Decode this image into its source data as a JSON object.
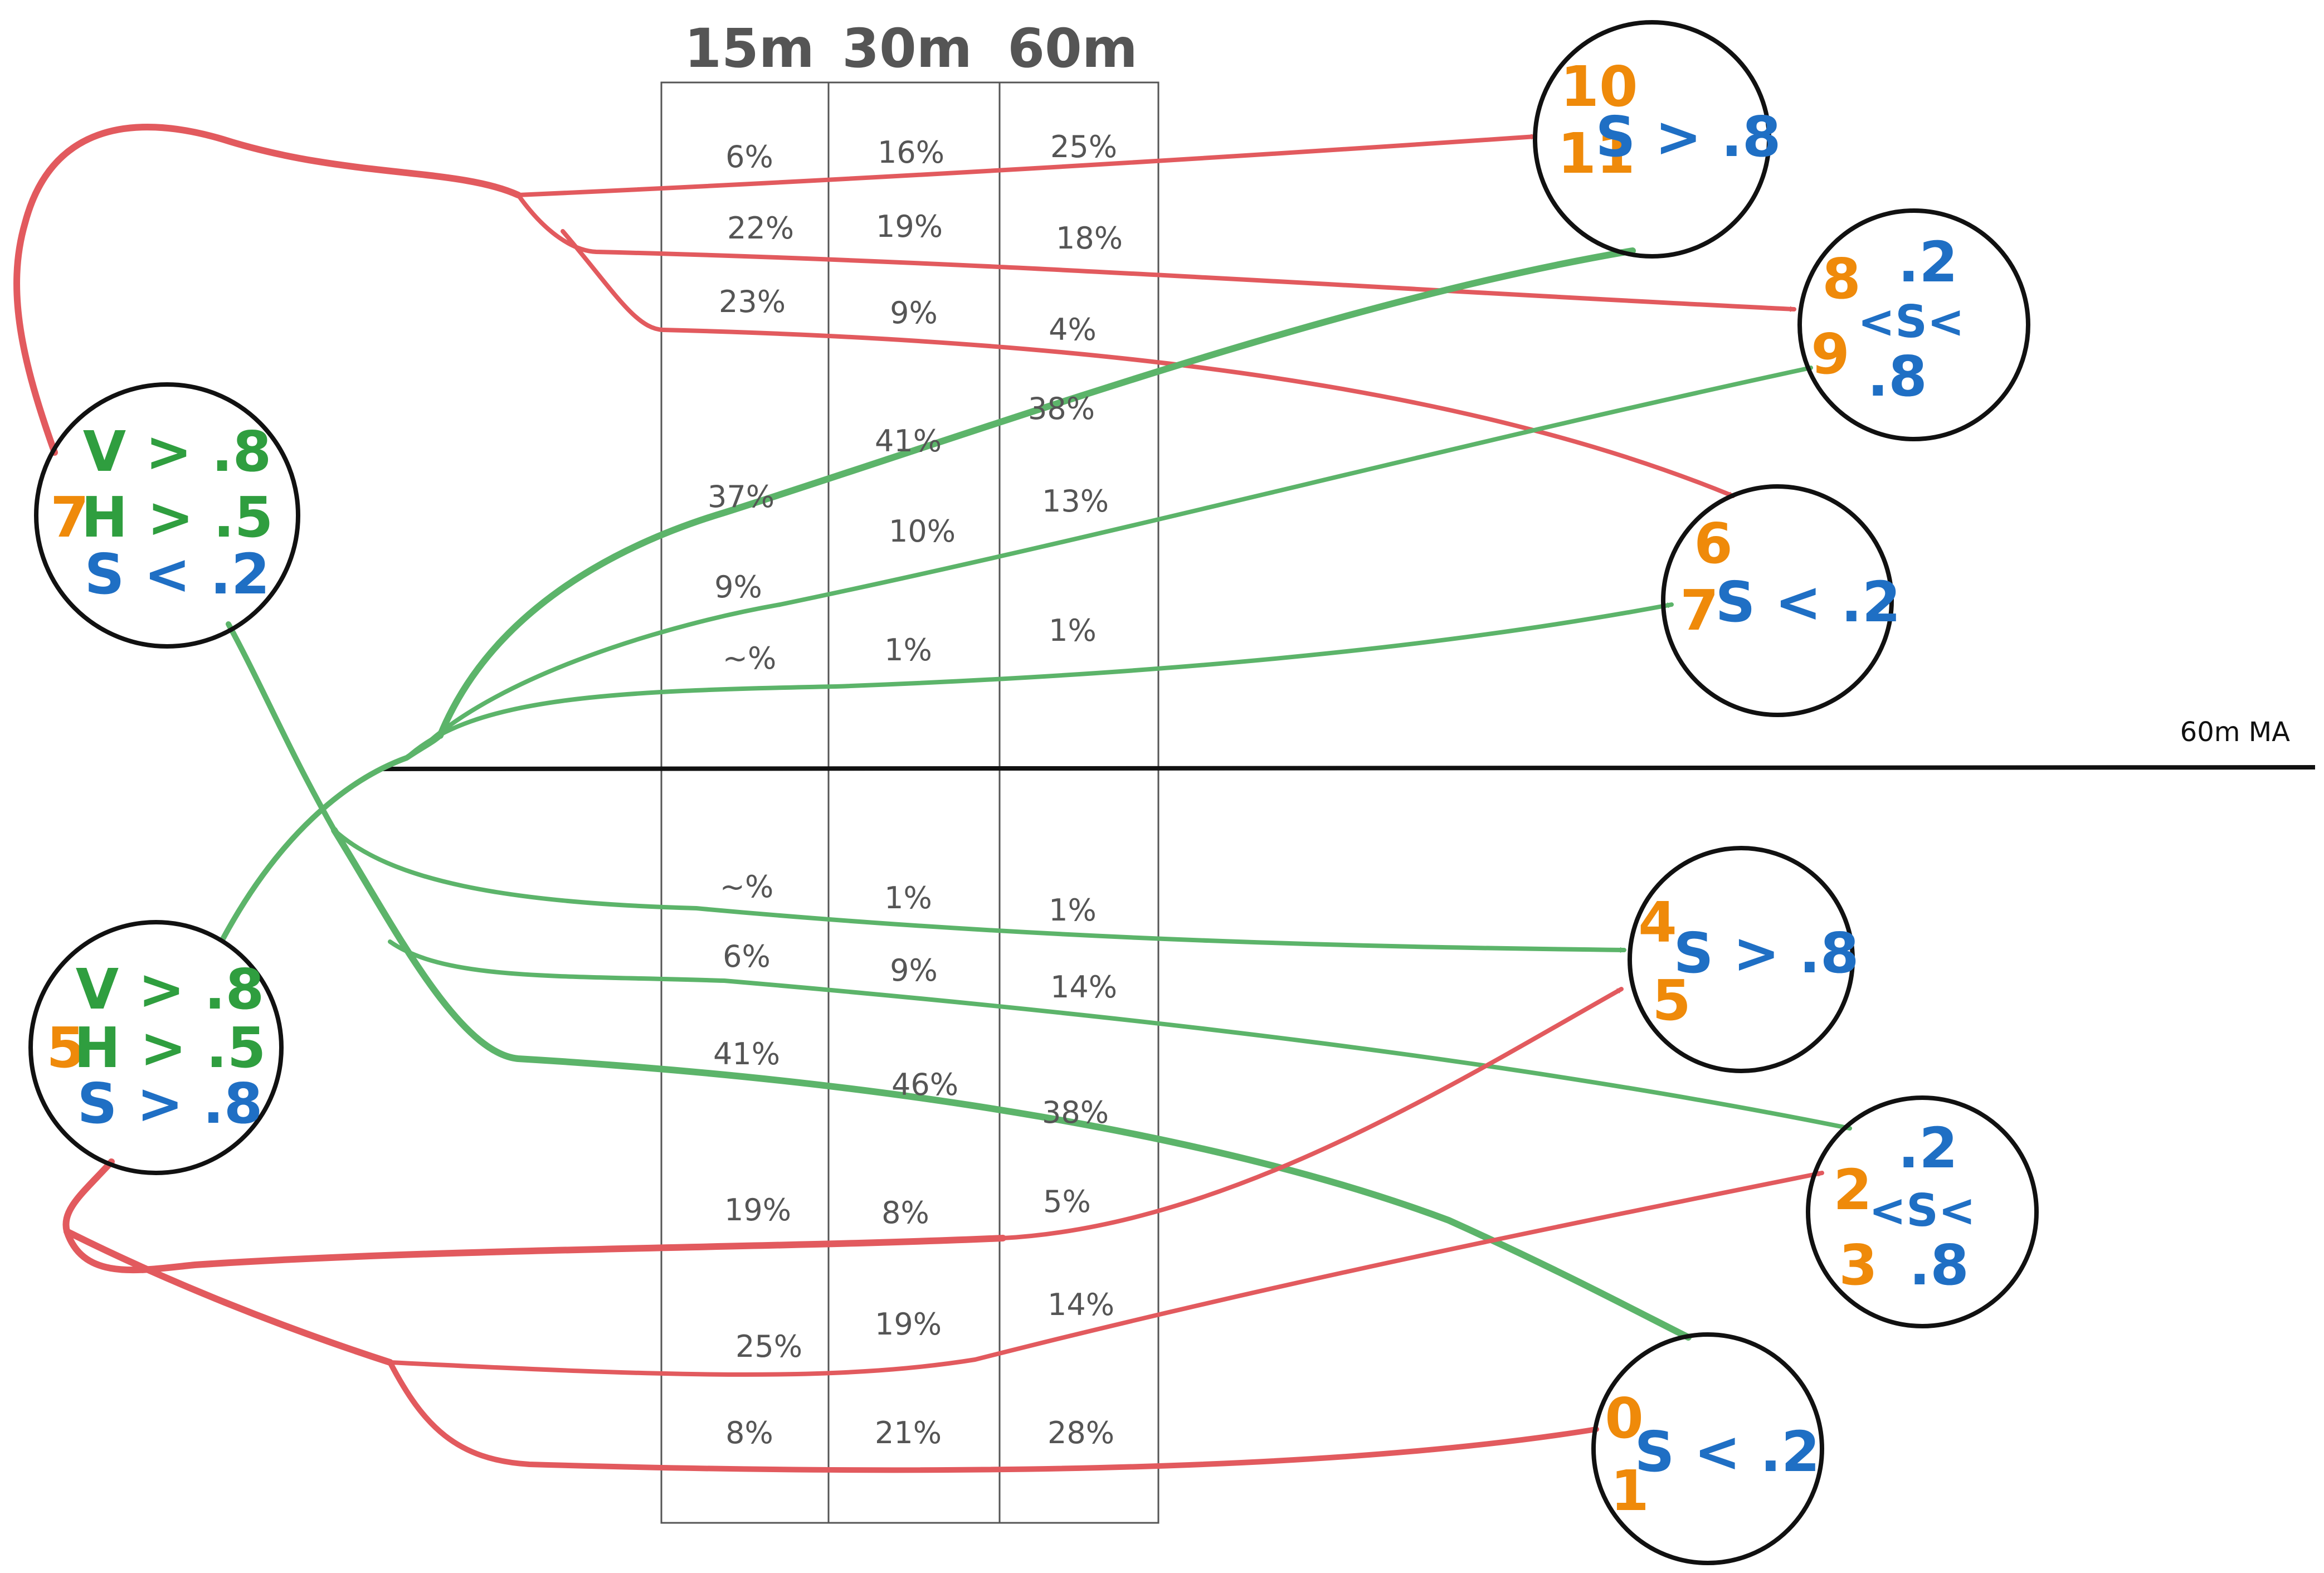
{
  "columns": {
    "headers": [
      "15m",
      "30m",
      "60m"
    ]
  },
  "ma_label": "60m MA",
  "colors": {
    "red": "#e25a5e",
    "green": "#5cb46a",
    "orange": "#ef8a0a",
    "blue": "#1f6fc4",
    "dark_green": "#2f9e3f"
  },
  "nodes": {
    "source_top": {
      "state": "7",
      "line1": "V > .8",
      "line2": "H > .5",
      "line3": "S < .2"
    },
    "source_bottom": {
      "state": "5",
      "line1": "V > .8",
      "line2": "H > .5",
      "line3": "S > .8"
    },
    "t_10_11": {
      "state_a": "10",
      "state_b": "11",
      "cond": "S > .8"
    },
    "t_8_9": {
      "state_a": "8",
      "state_b": "9",
      "cond_top": ".2",
      "cond_mid": "<S<",
      "cond_bot": ".8"
    },
    "t_6_7": {
      "state_a": "6",
      "state_b": "7",
      "cond": "S < .2"
    },
    "t_4_5": {
      "state_a": "4",
      "state_b": "5",
      "cond": "S > .8"
    },
    "t_2_3": {
      "state_a": "2",
      "state_b": "3",
      "cond_top": ".2",
      "cond_mid": "<S<",
      "cond_bot": ".8"
    },
    "t_0_1": {
      "state_a": "0",
      "state_b": "1",
      "cond": "S < .2"
    }
  },
  "transitions": {
    "top_red_to_10_11": [
      "6%",
      "16%",
      "25%"
    ],
    "top_red_to_8_9": [
      "22%",
      "19%",
      "18%"
    ],
    "top_red_to_6_7": [
      "23%",
      "9%",
      "4%"
    ],
    "top_green_to_10_11": [
      "37%",
      "41%",
      "38%"
    ],
    "top_green_to_8_9": [
      "9%",
      "10%",
      "13%"
    ],
    "top_green_to_6_7": [
      "~%",
      "1%",
      "1%"
    ],
    "bottom_green_to_4_5": [
      "~%",
      "1%",
      "1%"
    ],
    "bottom_green_to_2_3": [
      "6%",
      "9%",
      "14%"
    ],
    "bottom_green_to_0_1": [
      "41%",
      "46%",
      "38%"
    ],
    "bottom_red_to_4_5": [
      "19%",
      "8%",
      "5%"
    ],
    "bottom_red_to_2_3": [
      "25%",
      "19%",
      "14%"
    ],
    "bottom_red_to_0_1": [
      "8%",
      "21%",
      "28%"
    ]
  }
}
